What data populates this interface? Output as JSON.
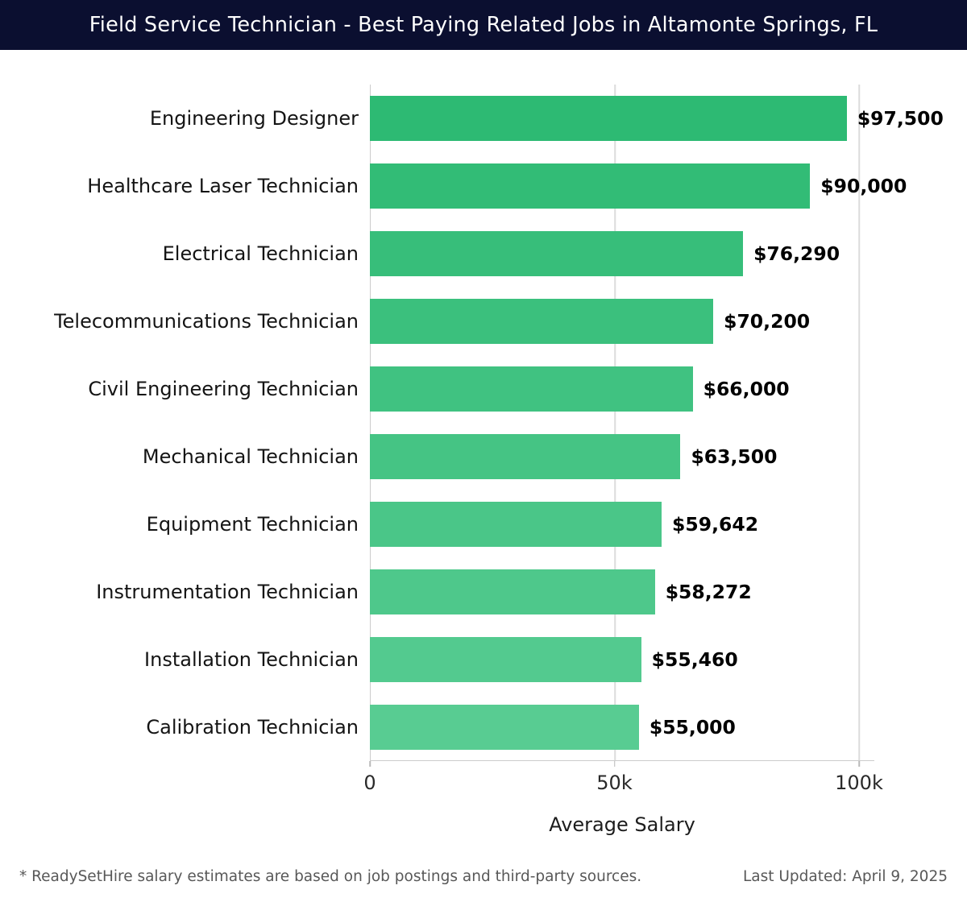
{
  "header": {
    "title": "Field Service Technician - Best Paying Related Jobs in Altamonte Springs, FL",
    "background_color": "#0b0f30",
    "text_color": "#ffffff"
  },
  "chart_data": {
    "type": "bar",
    "orientation": "horizontal",
    "title": "Field Service Technician - Best Paying Related Jobs in Altamonte Springs, FL",
    "categories": [
      "Engineering Designer",
      "Healthcare Laser Technician",
      "Electrical Technician",
      "Telecommunications Technician",
      "Civil Engineering Technician",
      "Mechanical Technician",
      "Equipment Technician",
      "Instrumentation Technician",
      "Installation Technician",
      "Calibration Technician"
    ],
    "values": [
      97500,
      90000,
      76290,
      70200,
      66000,
      63500,
      59642,
      58272,
      55460,
      55000
    ],
    "value_labels": [
      "$97,500",
      "$90,000",
      "$76,290",
      "$70,200",
      "$66,000",
      "$63,500",
      "$59,642",
      "$58,272",
      "$55,460",
      "$55,000"
    ],
    "bar_colors": [
      "#2dba73",
      "#32bc76",
      "#37be7a",
      "#3bc07d",
      "#40c281",
      "#45c484",
      "#4ac688",
      "#4ec88b",
      "#53ca8f",
      "#58cc92"
    ],
    "xlabel": "Average Salary",
    "x_ticks": [
      {
        "value": 0,
        "label": "0"
      },
      {
        "value": 50000,
        "label": "50k"
      },
      {
        "value": 100000,
        "label": "100k"
      }
    ],
    "xlim": [
      0,
      103130
    ],
    "grid": "vertical",
    "grid_color": "#dcdcdc",
    "axis_color": "#cccccc",
    "legend": "none"
  },
  "footer": {
    "note": "* ReadySetHire salary estimates are based on job postings and third-party sources.",
    "last_updated": "Last Updated: April 9, 2025"
  }
}
